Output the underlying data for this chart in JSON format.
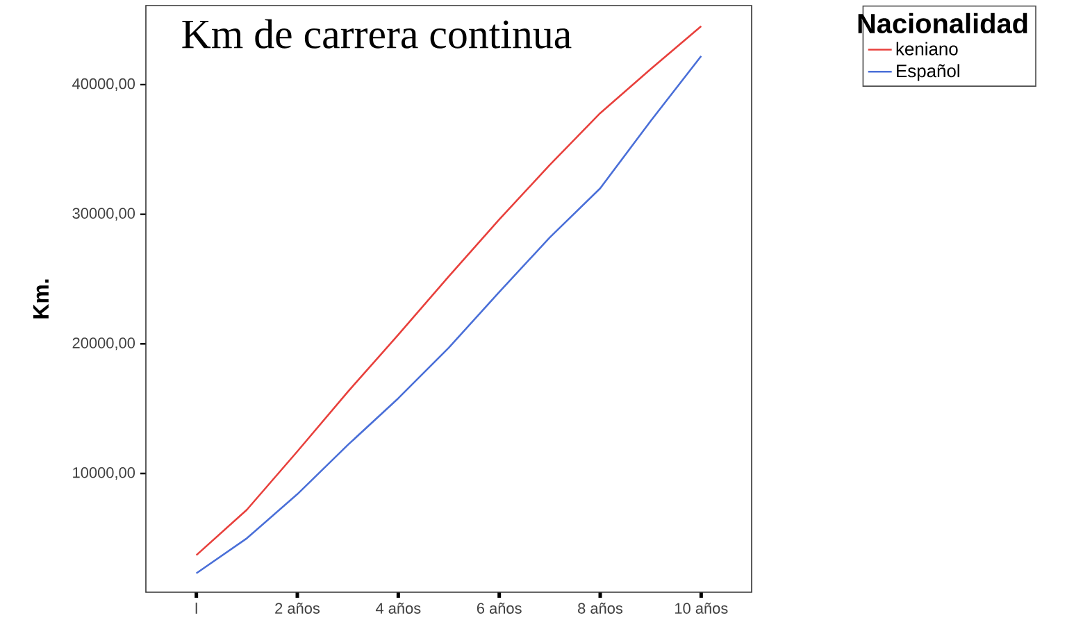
{
  "chart_data": {
    "type": "line",
    "title": "Km de carrera continua",
    "ylabel": "Km.",
    "legend_title": "Nacionalidad",
    "legend": "top right",
    "categories": [
      "l",
      null,
      "2 años",
      null,
      "4 años",
      null,
      "6 años",
      null,
      "8 años",
      null,
      "10 años"
    ],
    "ylim": [
      840,
      46100
    ],
    "yticks": [
      {
        "value": 10000,
        "label": "10000,00"
      },
      {
        "value": 20000,
        "label": "20000,00"
      },
      {
        "value": 30000,
        "label": "30000,00"
      },
      {
        "value": 40000,
        "label": "40000,00"
      }
    ],
    "series": [
      {
        "name": "keniano",
        "color": "#e8403c",
        "values": [
          3700,
          7200,
          11700,
          16300,
          20700,
          25200,
          29600,
          33800,
          37800,
          41200,
          44500
        ]
      },
      {
        "name": "Español",
        "color": "#4a6fd8",
        "values": [
          2300,
          5000,
          8400,
          12200,
          15800,
          19700,
          24000,
          28200,
          32000,
          37200,
          42200
        ]
      }
    ]
  }
}
